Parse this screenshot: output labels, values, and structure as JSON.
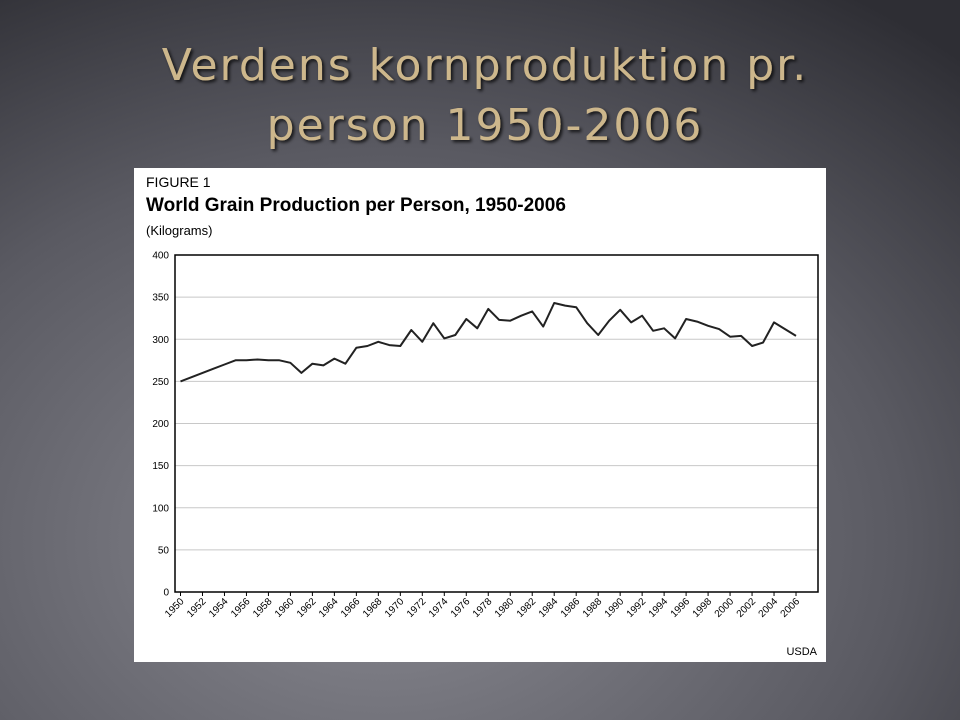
{
  "slide_title": [
    "Verdens kornproduktion pr.",
    "person 1950-2006"
  ],
  "chart_data": {
    "type": "line",
    "label": "FIGURE 1",
    "title": "World Grain Production per Person, 1950-2006",
    "subtitle": "(Kilograms)",
    "source": "USDA",
    "x": [
      1950,
      1951,
      1952,
      1953,
      1954,
      1955,
      1956,
      1957,
      1958,
      1959,
      1960,
      1961,
      1962,
      1963,
      1964,
      1965,
      1966,
      1967,
      1968,
      1969,
      1970,
      1971,
      1972,
      1973,
      1974,
      1975,
      1976,
      1977,
      1978,
      1979,
      1980,
      1981,
      1982,
      1983,
      1984,
      1985,
      1986,
      1987,
      1988,
      1989,
      1990,
      1991,
      1992,
      1993,
      1994,
      1995,
      1996,
      1997,
      1998,
      1999,
      2000,
      2001,
      2002,
      2003,
      2004,
      2005,
      2006
    ],
    "values": [
      250,
      255,
      260,
      265,
      270,
      275,
      275,
      276,
      275,
      275,
      272,
      260,
      271,
      269,
      277,
      271,
      290,
      292,
      297,
      293,
      292,
      311,
      297,
      319,
      301,
      305,
      324,
      313,
      336,
      323,
      322,
      328,
      333,
      315,
      343,
      340,
      338,
      319,
      305,
      322,
      335,
      320,
      328,
      310,
      313,
      301,
      324,
      321,
      316,
      312,
      303,
      304,
      292,
      296,
      320,
      312,
      304
    ],
    "color": "#222222",
    "xlim": [
      1949.5,
      2008
    ],
    "xticks": [
      1950,
      1952,
      1954,
      1956,
      1958,
      1960,
      1962,
      1964,
      1966,
      1968,
      1970,
      1972,
      1974,
      1976,
      1978,
      1980,
      1982,
      1984,
      1986,
      1988,
      1990,
      1992,
      1994,
      1996,
      1998,
      2000,
      2002,
      2004,
      2006
    ],
    "ylim": [
      0,
      400
    ],
    "yticks": [
      0,
      50,
      100,
      150,
      200,
      250,
      300,
      350,
      400
    ],
    "grid": true
  }
}
